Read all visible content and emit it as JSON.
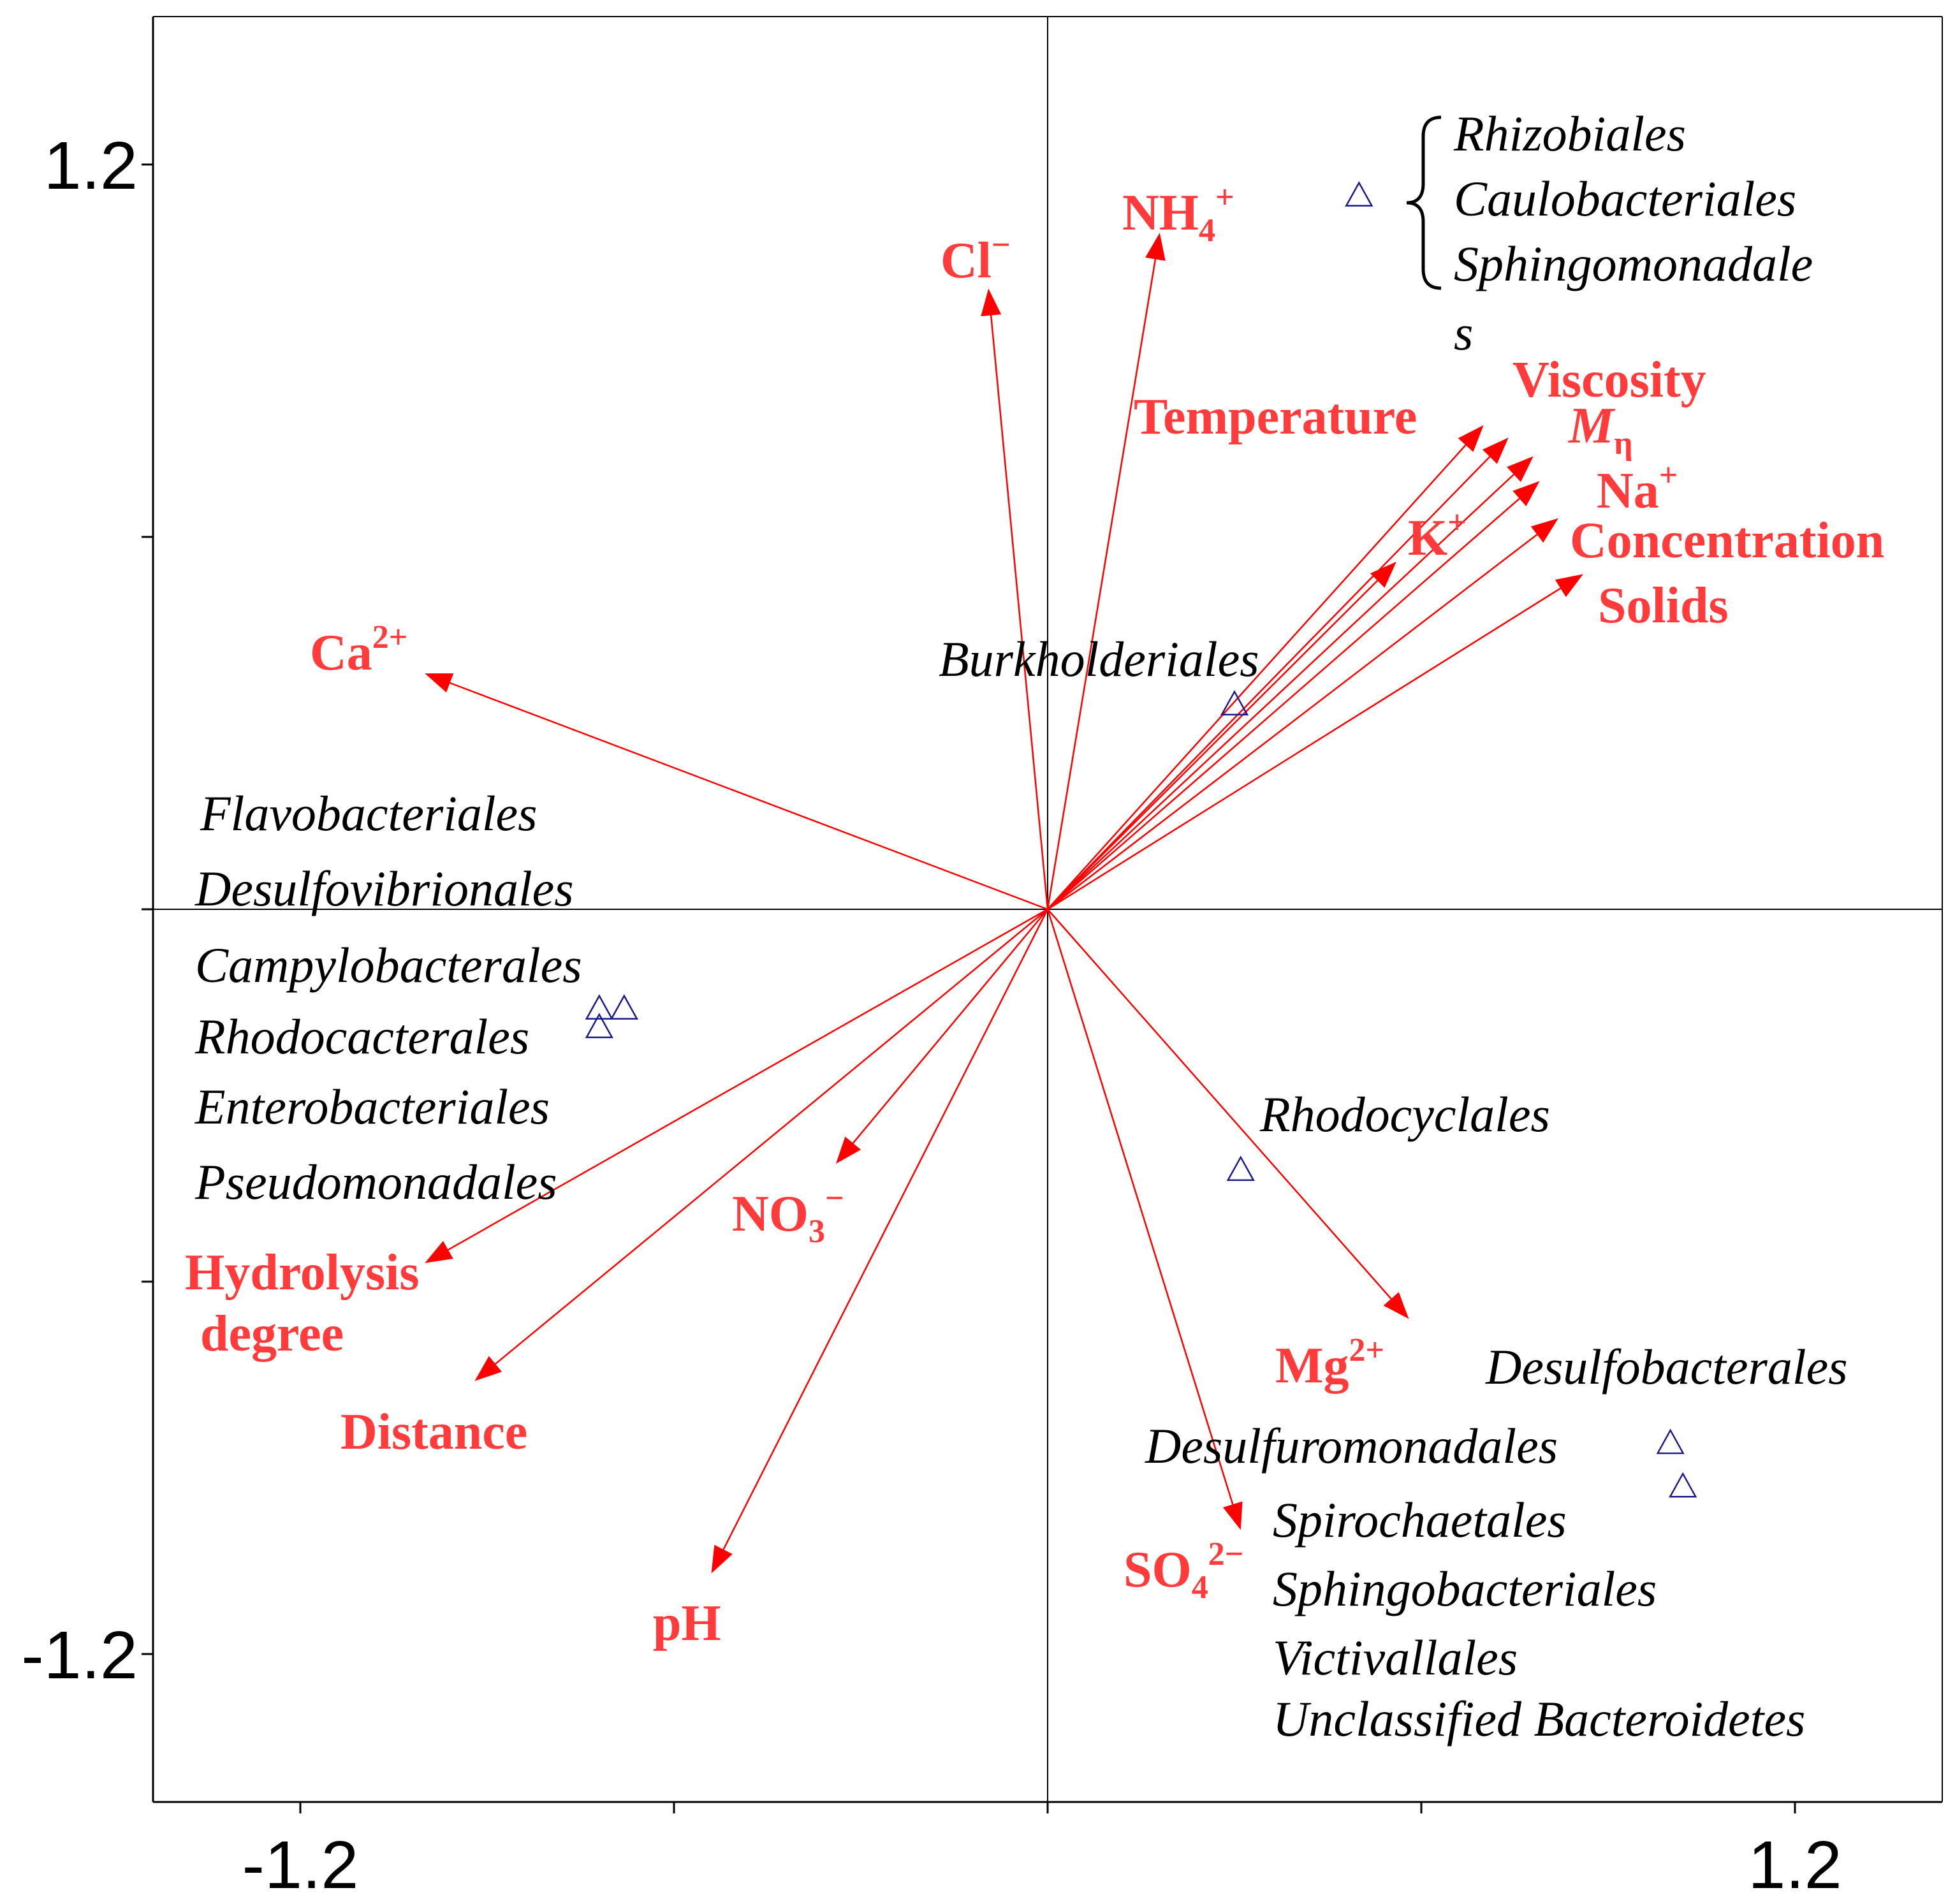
{
  "colors": {
    "env": "#ff3b3b",
    "arrow": "#ff0000",
    "axis": "#000000",
    "marker": "#1a1a8c",
    "text": "#000000"
  },
  "icons": {
    "sample": "triangle-marker",
    "group": "brace"
  },
  "chart_data": {
    "type": "scatter",
    "xlim": [
      -1.2,
      1.2
    ],
    "ylim": [
      -1.2,
      1.2
    ],
    "x_tick_labels": [
      {
        "value": -1.2,
        "text": "-1.2"
      },
      {
        "value": 1.2,
        "text": "1.2"
      }
    ],
    "y_tick_labels": [
      {
        "value": 1.2,
        "text": "1.2"
      },
      {
        "value": -1.2,
        "text": "-1.2"
      }
    ],
    "x_ticks": [
      -1.2,
      -0.6,
      0,
      0.6,
      1.2
    ],
    "y_ticks": [
      1.2,
      0.6,
      0,
      -0.6,
      -1.2
    ],
    "vectors": [
      {
        "id": "cl",
        "label": "Cl",
        "sup": "−",
        "x": -0.095,
        "y": 1.0
      },
      {
        "id": "nh4",
        "label": "NH",
        "sub": "4",
        "sup": "+",
        "x": 0.18,
        "y": 1.09
      },
      {
        "id": "temp",
        "label": "Temperature",
        "x": 0.7,
        "y": 0.78
      },
      {
        "id": "visc",
        "label": "Viscosity",
        "x": 0.74,
        "y": 0.76
      },
      {
        "id": "mn",
        "label": "M",
        "sub": "η",
        "italic": true,
        "x": 0.78,
        "y": 0.73
      },
      {
        "id": "na",
        "label": "Na",
        "sup": "+",
        "x": 0.79,
        "y": 0.69
      },
      {
        "id": "k",
        "label": "K",
        "sup": "+",
        "x": 0.56,
        "y": 0.56
      },
      {
        "id": "conc",
        "label": "Concentration",
        "x": 0.82,
        "y": 0.63
      },
      {
        "id": "solids",
        "label": "Solids",
        "x": 0.86,
        "y": 0.54
      },
      {
        "id": "ca",
        "label": "Ca",
        "sup": "2+",
        "x": -1.0,
        "y": 0.38
      },
      {
        "id": "hyd",
        "label": "Hydrolysis",
        "label2": "degree",
        "x": -1.0,
        "y": -0.57
      },
      {
        "id": "dist",
        "label": "Distance",
        "x": -0.92,
        "y": -0.76
      },
      {
        "id": "no3",
        "label": "NO",
        "sub": "3",
        "sup": "−",
        "x": -0.34,
        "y": -0.41
      },
      {
        "id": "ph",
        "label": "pH",
        "x": -0.54,
        "y": -1.07
      },
      {
        "id": "mg",
        "label": "Mg",
        "sup": "2+",
        "x": 0.58,
        "y": -0.66
      },
      {
        "id": "so4",
        "label": "SO",
        "sub": "4",
        "sup": "2−",
        "x": 0.31,
        "y": -1.0
      }
    ],
    "samples": [
      {
        "x": 0.5,
        "y": 1.15
      },
      {
        "x": 0.3,
        "y": 0.33
      },
      {
        "x": -0.72,
        "y": -0.16
      },
      {
        "x": -0.68,
        "y": -0.16
      },
      {
        "x": -0.72,
        "y": -0.19
      },
      {
        "x": 0.31,
        "y": -0.42
      },
      {
        "x": 1.0,
        "y": -0.86
      },
      {
        "x": 1.02,
        "y": -0.93
      }
    ],
    "taxa_groups": [
      {
        "lines": [
          "Rhizobiales",
          "Caulobacteriales",
          "Sphingomonadale",
          "s"
        ],
        "bracketed": true
      },
      {
        "lines": [
          "Burkholderiales"
        ]
      },
      {
        "lines": [
          "Flavobacteriales",
          "Desulfovibrionales",
          "Campylobacterales",
          "Rhodocacterales",
          "Enterobacteriales",
          "Pseudomonadales"
        ]
      },
      {
        "lines": [
          "Rhodocyclales"
        ]
      },
      {
        "lines": [
          "Desulfobacterales"
        ]
      },
      {
        "lines": [
          "Desulfuromonadales"
        ]
      },
      {
        "lines": [
          "Spirochaetales",
          "Sphingobacteriales",
          "Victivallales",
          "Unclassified Bacteroidetes"
        ]
      }
    ]
  }
}
